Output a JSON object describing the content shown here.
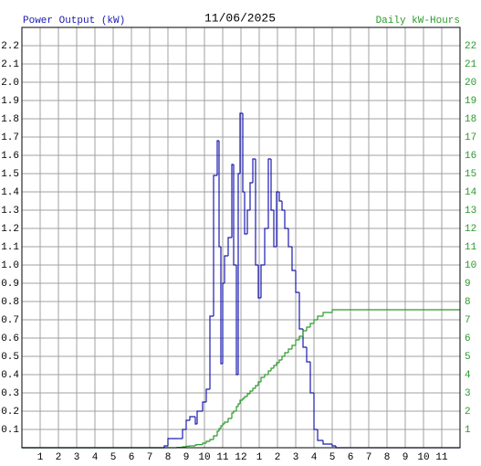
{
  "chart_data": {
    "type": "line",
    "step": "post",
    "title": "11/06/2025",
    "ylabel": "Power Output (kW)",
    "y2label": "Daily kW-Hours",
    "x": [
      0,
      7.8,
      8.0,
      8.5,
      8.8,
      9.0,
      9.2,
      9.5,
      9.6,
      9.9,
      10.1,
      10.3,
      10.5,
      10.7,
      10.8,
      10.9,
      11.0,
      11.1,
      11.3,
      11.5,
      11.6,
      11.75,
      11.85,
      11.95,
      12.1,
      12.2,
      12.35,
      12.5,
      12.65,
      12.8,
      12.95,
      13.1,
      13.3,
      13.5,
      13.65,
      13.8,
      13.95,
      14.1,
      14.25,
      14.4,
      14.6,
      14.8,
      15.0,
      15.2,
      15.4,
      15.6,
      15.8,
      16.0,
      16.2,
      16.5,
      17.0,
      17.2,
      24
    ],
    "series": [
      {
        "name": "Power Output (kW)",
        "color": "#1a1ab0",
        "values": [
          0,
          0.01,
          0.05,
          0.05,
          0.1,
          0.15,
          0.17,
          0.13,
          0.2,
          0.25,
          0.32,
          0.72,
          1.49,
          1.68,
          1.1,
          0.46,
          0.9,
          1.05,
          1.15,
          1.55,
          1.0,
          0.4,
          1.5,
          1.83,
          1.4,
          1.17,
          1.3,
          1.45,
          1.58,
          1.0,
          0.82,
          1.0,
          1.2,
          1.58,
          1.3,
          1.1,
          1.4,
          1.35,
          1.3,
          1.2,
          1.1,
          0.97,
          0.85,
          0.65,
          0.55,
          0.47,
          0.3,
          0.1,
          0.04,
          0.02,
          0.01,
          0,
          0
        ]
      },
      {
        "name": "Daily kW-Hours",
        "color": "#2a9a2a",
        "axis": "y2",
        "values": [
          0,
          0,
          0,
          0.02,
          0.05,
          0.08,
          0.1,
          0.15,
          0.17,
          0.25,
          0.35,
          0.45,
          0.65,
          0.9,
          1.05,
          1.2,
          1.3,
          1.4,
          1.6,
          1.9,
          2.0,
          2.25,
          2.4,
          2.6,
          2.7,
          2.8,
          2.95,
          3.1,
          3.25,
          3.4,
          3.6,
          3.85,
          4.0,
          4.2,
          4.35,
          4.5,
          4.65,
          4.8,
          5.0,
          5.2,
          5.4,
          5.6,
          5.9,
          6.1,
          6.4,
          6.6,
          6.8,
          7.0,
          7.2,
          7.4,
          7.55,
          7.55,
          7.55
        ]
      }
    ],
    "xlim": [
      0,
      24
    ],
    "xticks": [
      1,
      2,
      3,
      4,
      5,
      6,
      7,
      8,
      9,
      10,
      11,
      12,
      {
        "value": 13,
        "label": "1"
      },
      {
        "value": 14,
        "label": "2"
      },
      {
        "value": 15,
        "label": "3"
      },
      {
        "value": 16,
        "label": "4"
      },
      {
        "value": 17,
        "label": "5"
      },
      {
        "value": 18,
        "label": "6"
      },
      {
        "value": 19,
        "label": "7"
      },
      {
        "value": 20,
        "label": "8"
      },
      {
        "value": 21,
        "label": "9"
      },
      {
        "value": 22,
        "label": "10"
      },
      {
        "value": 23,
        "label": "11"
      }
    ],
    "ylim": [
      0,
      2.3
    ],
    "yticks": [
      0.1,
      0.2,
      0.3,
      0.4,
      0.5,
      0.6,
      0.7,
      0.8,
      0.9,
      {
        "value": 1,
        "label": "1.0"
      },
      1.1,
      1.2,
      1.3,
      1.4,
      1.5,
      1.6,
      1.7,
      1.8,
      1.9,
      {
        "value": 2,
        "label": "2.0"
      },
      2.1,
      2.2
    ],
    "y2lim": [
      0,
      23
    ],
    "y2ticks": [
      1,
      2,
      3,
      4,
      5,
      6,
      7,
      8,
      9,
      10,
      11,
      12,
      13,
      14,
      15,
      16,
      17,
      18,
      19,
      20,
      21,
      22
    ],
    "grid": true
  }
}
